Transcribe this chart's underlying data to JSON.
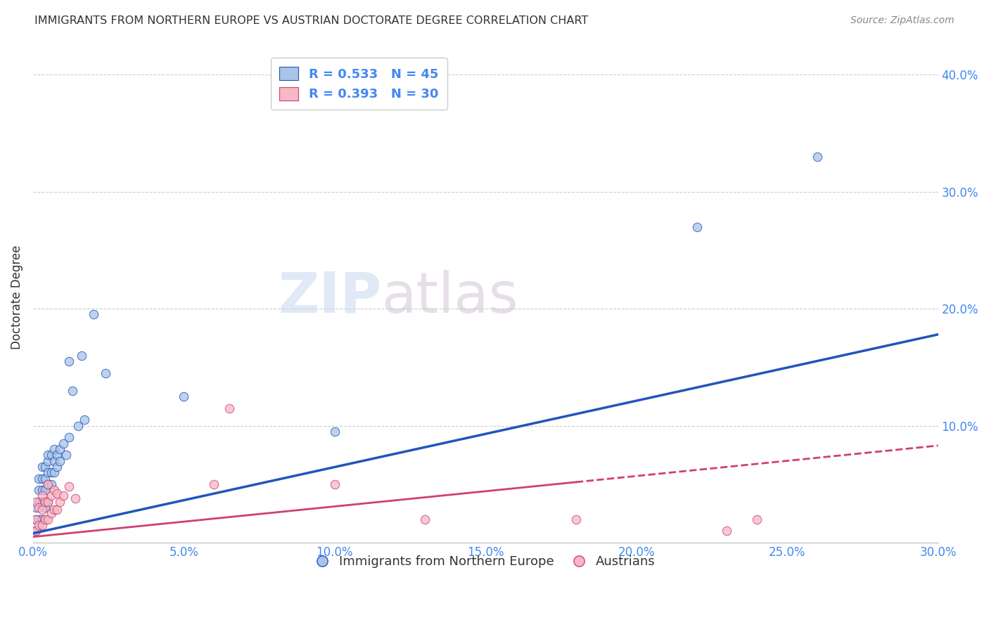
{
  "title": "IMMIGRANTS FROM NORTHERN EUROPE VS AUSTRIAN DOCTORATE DEGREE CORRELATION CHART",
  "source": "Source: ZipAtlas.com",
  "ylabel": "Doctorate Degree",
  "xlim": [
    0.0,
    0.3
  ],
  "ylim": [
    0.0,
    0.42
  ],
  "xticks": [
    0.0,
    0.05,
    0.1,
    0.15,
    0.2,
    0.25,
    0.3
  ],
  "yticks": [
    0.0,
    0.1,
    0.2,
    0.3,
    0.4
  ],
  "blue_color": "#A8C4E8",
  "blue_line_color": "#2255BB",
  "pink_color": "#F5B8C4",
  "pink_line_color": "#D04070",
  "legend_r1": "R = 0.533   N = 45",
  "legend_r2": "R = 0.393   N = 30",
  "legend_label1": "Immigrants from Northern Europe",
  "legend_label2": "Austrians",
  "blue_x": [
    0.001,
    0.001,
    0.001,
    0.002,
    0.002,
    0.002,
    0.002,
    0.003,
    0.003,
    0.003,
    0.003,
    0.003,
    0.004,
    0.004,
    0.004,
    0.004,
    0.005,
    0.005,
    0.005,
    0.005,
    0.005,
    0.006,
    0.006,
    0.006,
    0.007,
    0.007,
    0.007,
    0.008,
    0.008,
    0.009,
    0.009,
    0.01,
    0.011,
    0.012,
    0.012,
    0.013,
    0.015,
    0.016,
    0.017,
    0.02,
    0.024,
    0.05,
    0.1,
    0.22,
    0.26
  ],
  "blue_y": [
    0.01,
    0.02,
    0.03,
    0.02,
    0.035,
    0.045,
    0.055,
    0.02,
    0.035,
    0.045,
    0.055,
    0.065,
    0.03,
    0.045,
    0.055,
    0.065,
    0.035,
    0.05,
    0.06,
    0.07,
    0.075,
    0.05,
    0.06,
    0.075,
    0.06,
    0.07,
    0.08,
    0.065,
    0.075,
    0.07,
    0.08,
    0.085,
    0.075,
    0.09,
    0.155,
    0.13,
    0.1,
    0.16,
    0.105,
    0.195,
    0.145,
    0.125,
    0.095,
    0.27,
    0.33
  ],
  "pink_x": [
    0.001,
    0.001,
    0.001,
    0.002,
    0.002,
    0.003,
    0.003,
    0.003,
    0.004,
    0.004,
    0.005,
    0.005,
    0.005,
    0.006,
    0.006,
    0.007,
    0.007,
    0.008,
    0.008,
    0.009,
    0.01,
    0.012,
    0.014,
    0.06,
    0.065,
    0.1,
    0.13,
    0.18,
    0.23,
    0.24
  ],
  "pink_y": [
    0.01,
    0.02,
    0.035,
    0.015,
    0.03,
    0.015,
    0.028,
    0.04,
    0.02,
    0.035,
    0.02,
    0.035,
    0.05,
    0.025,
    0.04,
    0.028,
    0.045,
    0.028,
    0.042,
    0.035,
    0.04,
    0.048,
    0.038,
    0.05,
    0.115,
    0.05,
    0.02,
    0.02,
    0.01,
    0.02
  ],
  "blue_line_x0": 0.0,
  "blue_line_y0": 0.008,
  "blue_line_x1": 0.3,
  "blue_line_y1": 0.178,
  "pink_line_x0": 0.0,
  "pink_line_y0": 0.005,
  "pink_line_x1": 0.3,
  "pink_line_y1": 0.083,
  "marker_size": 80,
  "grid_color": "#CCCCCC",
  "bg_color": "#FFFFFF",
  "title_color": "#333333",
  "tick_label_color": "#4488EE"
}
